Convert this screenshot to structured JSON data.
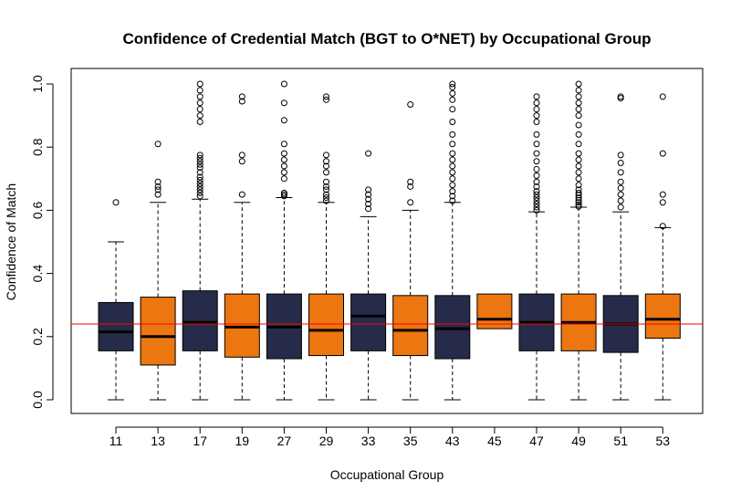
{
  "chart_data": {
    "type": "boxplot",
    "title": "Confidence of Credential Match (BGT to O*NET) by Occupational Group",
    "xlabel": "Occupational Group",
    "ylabel": "Confidence of Match",
    "ylim": [
      0,
      1
    ],
    "yticks": [
      "0.0",
      "0.2",
      "0.4",
      "0.6",
      "0.8",
      "1.0"
    ],
    "grid": false,
    "reference_line": {
      "y": 0.24,
      "color": "#ff0000"
    },
    "colors": {
      "navy": "#262b4a",
      "orange": "#ec760f"
    },
    "categories": [
      "11",
      "13",
      "17",
      "19",
      "27",
      "29",
      "33",
      "35",
      "43",
      "45",
      "47",
      "49",
      "51",
      "53"
    ],
    "boxes": [
      {
        "category": "11",
        "color": "navy",
        "whisker_low": 0.0,
        "q1": 0.155,
        "median": 0.215,
        "q3": 0.308,
        "whisker_high": 0.5,
        "outliers": [
          0.625
        ]
      },
      {
        "category": "13",
        "color": "orange",
        "whisker_low": 0.0,
        "q1": 0.11,
        "median": 0.2,
        "q3": 0.325,
        "whisker_high": 0.625,
        "outliers": [
          0.65,
          0.665,
          0.675,
          0.69,
          0.81
        ]
      },
      {
        "category": "17",
        "color": "navy",
        "whisker_low": 0.0,
        "q1": 0.155,
        "median": 0.245,
        "q3": 0.345,
        "whisker_high": 0.635,
        "outliers": [
          0.645,
          0.655,
          0.665,
          0.675,
          0.685,
          0.695,
          0.705,
          0.72,
          0.735,
          0.745,
          0.755,
          0.765,
          0.775,
          0.88,
          0.9,
          0.92,
          0.94,
          0.96,
          0.98,
          1.0
        ]
      },
      {
        "category": "19",
        "color": "orange",
        "whisker_low": 0.0,
        "q1": 0.135,
        "median": 0.23,
        "q3": 0.335,
        "whisker_high": 0.625,
        "outliers": [
          0.65,
          0.755,
          0.775,
          0.945,
          0.96
        ]
      },
      {
        "category": "27",
        "color": "navy",
        "whisker_low": 0.0,
        "q1": 0.13,
        "median": 0.23,
        "q3": 0.335,
        "whisker_high": 0.64,
        "outliers": [
          0.645,
          0.65,
          0.655,
          0.7,
          0.72,
          0.74,
          0.76,
          0.78,
          0.81,
          0.885,
          0.94,
          1.0
        ]
      },
      {
        "category": "29",
        "color": "orange",
        "whisker_low": 0.0,
        "q1": 0.14,
        "median": 0.22,
        "q3": 0.335,
        "whisker_high": 0.625,
        "outliers": [
          0.63,
          0.64,
          0.65,
          0.665,
          0.675,
          0.69,
          0.72,
          0.74,
          0.755,
          0.775,
          0.95,
          0.96
        ]
      },
      {
        "category": "33",
        "color": "navy",
        "whisker_low": 0.0,
        "q1": 0.155,
        "median": 0.265,
        "q3": 0.335,
        "whisker_high": 0.58,
        "outliers": [
          0.605,
          0.62,
          0.635,
          0.65,
          0.665,
          0.78
        ]
      },
      {
        "category": "35",
        "color": "orange",
        "whisker_low": 0.0,
        "q1": 0.14,
        "median": 0.22,
        "q3": 0.33,
        "whisker_high": 0.6,
        "outliers": [
          0.625,
          0.675,
          0.69,
          0.935
        ]
      },
      {
        "category": "43",
        "color": "navy",
        "whisker_low": 0.0,
        "q1": 0.13,
        "median": 0.225,
        "q3": 0.33,
        "whisker_high": 0.625,
        "outliers": [
          0.63,
          0.645,
          0.66,
          0.68,
          0.7,
          0.72,
          0.74,
          0.76,
          0.78,
          0.81,
          0.84,
          0.88,
          0.92,
          0.95,
          0.97,
          0.99,
          1.0
        ]
      },
      {
        "category": "45",
        "color": "orange",
        "whisker_low": 0.225,
        "q1": 0.225,
        "median": 0.255,
        "q3": 0.335,
        "whisker_high": 0.335,
        "outliers": []
      },
      {
        "category": "47",
        "color": "navy",
        "whisker_low": 0.0,
        "q1": 0.155,
        "median": 0.245,
        "q3": 0.335,
        "whisker_high": 0.595,
        "outliers": [
          0.6,
          0.61,
          0.62,
          0.63,
          0.64,
          0.65,
          0.66,
          0.675,
          0.69,
          0.71,
          0.73,
          0.755,
          0.78,
          0.81,
          0.84,
          0.88,
          0.9,
          0.92,
          0.94,
          0.96
        ]
      },
      {
        "category": "49",
        "color": "orange",
        "whisker_low": 0.0,
        "q1": 0.155,
        "median": 0.245,
        "q3": 0.335,
        "whisker_high": 0.61,
        "outliers": [
          0.612,
          0.618,
          0.625,
          0.632,
          0.64,
          0.648,
          0.655,
          0.665,
          0.68,
          0.7,
          0.72,
          0.74,
          0.76,
          0.78,
          0.81,
          0.84,
          0.87,
          0.9,
          0.92,
          0.94,
          0.96,
          0.98,
          1.0
        ]
      },
      {
        "category": "51",
        "color": "navy",
        "whisker_low": 0.0,
        "q1": 0.15,
        "median": 0.24,
        "q3": 0.33,
        "whisker_high": 0.595,
        "outliers": [
          0.61,
          0.63,
          0.65,
          0.67,
          0.69,
          0.72,
          0.75,
          0.775,
          0.955,
          0.96
        ]
      },
      {
        "category": "53",
        "color": "orange",
        "whisker_low": 0.0,
        "q1": 0.195,
        "median": 0.255,
        "q3": 0.335,
        "whisker_high": 0.545,
        "outliers": [
          0.55,
          0.625,
          0.65,
          0.78,
          0.96
        ]
      }
    ]
  }
}
